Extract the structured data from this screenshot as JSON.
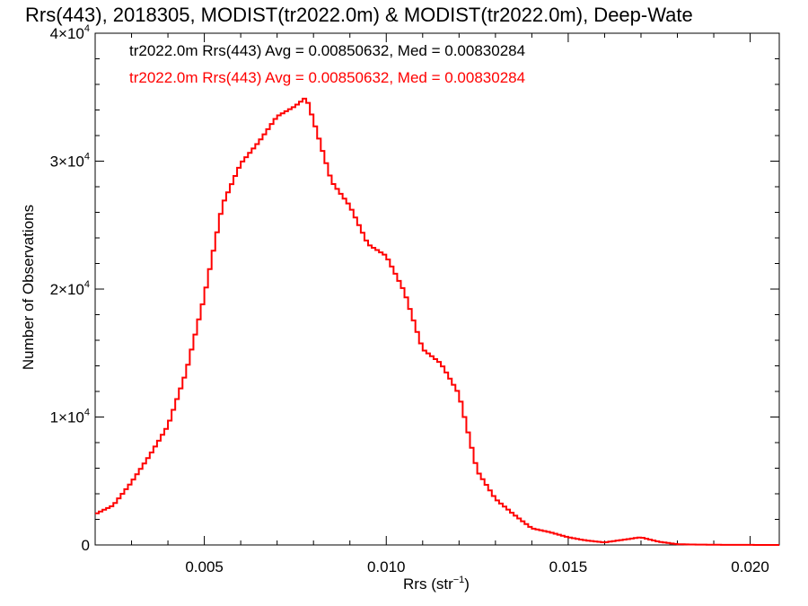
{
  "chart_data": {
    "type": "histogram",
    "title": "Rrs(443), 2018305, MODIST(tr2022.0m) & MODIST(tr2022.0m), Deep-Wate",
    "xlabel": "Rrs (str",
    "xlabel_sup": "−1",
    "xlabel_end": ")",
    "ylabel": "Number of Observations",
    "xlim": [
      0.002,
      0.0208
    ],
    "ylim": [
      0,
      40000
    ],
    "x_ticks": [
      {
        "value": 0.005,
        "label": "0.005"
      },
      {
        "value": 0.01,
        "label": "0.010"
      },
      {
        "value": 0.015,
        "label": "0.015"
      },
      {
        "value": 0.02,
        "label": "0.020"
      }
    ],
    "y_ticks": [
      {
        "value": 0,
        "mantissa": "0",
        "exp": ""
      },
      {
        "value": 10000,
        "mantissa": "1×10",
        "exp": "4"
      },
      {
        "value": 20000,
        "mantissa": "2×10",
        "exp": "4"
      },
      {
        "value": 30000,
        "mantissa": "3×10",
        "exp": "4"
      },
      {
        "value": 40000,
        "mantissa": "4×10",
        "exp": "4"
      }
    ],
    "annotations": [
      {
        "text": "tr2022.0m Rrs(443) Avg = 0.00850632, Med = 0.00830284",
        "color": "#000000"
      },
      {
        "text": "tr2022.0m Rrs(443) Avg = 0.00850632, Med = 0.00830284",
        "color": "#ff0000"
      }
    ],
    "grid": false,
    "series": [
      {
        "color": "#ff0000",
        "x": [
          0.002,
          0.0025,
          0.003,
          0.0035,
          0.004,
          0.0045,
          0.005,
          0.0055,
          0.006,
          0.0065,
          0.007,
          0.0075,
          0.0078,
          0.008,
          0.0085,
          0.009,
          0.0095,
          0.01,
          0.0105,
          0.011,
          0.0115,
          0.012,
          0.0125,
          0.013,
          0.0135,
          0.014,
          0.0145,
          0.015,
          0.0155,
          0.016,
          0.0165,
          0.017,
          0.0175,
          0.018,
          0.0185,
          0.019,
          0.02,
          0.0208
        ],
        "values": [
          2400,
          3100,
          4900,
          7000,
          9300,
          13500,
          19400,
          26600,
          29800,
          31500,
          33500,
          34300,
          35000,
          33200,
          28400,
          26500,
          23500,
          22600,
          19800,
          15300,
          14200,
          11800,
          5800,
          3600,
          2400,
          1300,
          1000,
          600,
          350,
          200,
          400,
          600,
          250,
          60,
          30,
          15,
          5,
          0
        ]
      }
    ]
  }
}
